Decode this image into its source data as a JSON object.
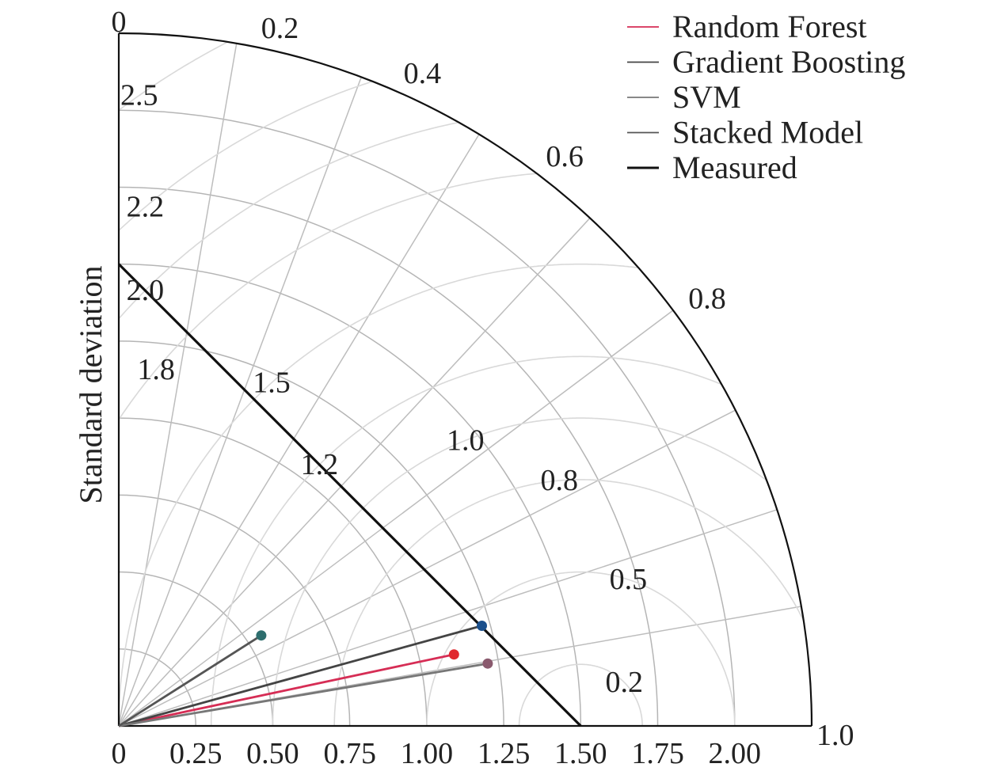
{
  "chart_data": {
    "type": "taylor",
    "ylabel": "Standard deviation",
    "std_max": 2.25,
    "std_ticks": [
      "0",
      "0.25",
      "0.50",
      "0.75",
      "1.00",
      "1.25",
      "1.50",
      "1.75",
      "2.00"
    ],
    "std_tick_values": [
      0,
      0.25,
      0.5,
      0.75,
      1.0,
      1.25,
      1.5,
      1.75,
      2.0
    ],
    "std_arc_values": [
      0.25,
      0.5,
      0.75,
      1.0,
      1.25,
      1.5,
      1.75,
      2.0
    ],
    "corr_ticks": [
      "0",
      "0.2",
      "0.4",
      "0.6",
      "0.8",
      "1.0"
    ],
    "corr_tick_values": [
      0,
      0.2,
      0.4,
      0.6,
      0.8,
      1.0
    ],
    "corr_label_correlations": [
      0.0,
      0.2,
      0.4,
      0.6,
      0.8,
      1.0
    ],
    "corr_grid_lines": [
      0.17,
      0.35,
      0.52,
      0.68,
      0.8,
      0.89,
      0.95,
      0.985
    ],
    "rms_arcs": [
      {
        "label": "0.2",
        "value": 0.2
      },
      {
        "label": "0.5",
        "value": 0.5
      },
      {
        "label": "0.8",
        "value": 0.8
      },
      {
        "label": "1.0",
        "value": 1.0
      },
      {
        "label": "1.2",
        "value": 1.2
      },
      {
        "label": "1.5",
        "value": 1.5
      },
      {
        "label": "1.8",
        "value": 1.8
      },
      {
        "label": "2.0",
        "value": 2.0
      },
      {
        "label": "2.2",
        "value": 2.2
      },
      {
        "label": "2.5",
        "value": 2.5
      }
    ],
    "reference": {
      "name": "Measured",
      "std": 1.5,
      "color": "#111111"
    },
    "series": [
      {
        "name": "Random Forest",
        "std": 1.113,
        "corr": 0.978,
        "color": "#d62d55",
        "marker": "#e0282e"
      },
      {
        "name": "Gradient Boosting",
        "std": 1.223,
        "corr": 0.964,
        "color": "#444444",
        "marker": "#1a4f8c"
      },
      {
        "name": "SVM",
        "std": 1.215,
        "corr": 0.986,
        "color": "#777777",
        "marker": "#8a5a6e"
      },
      {
        "name": "Stacked Model",
        "std": 0.548,
        "corr": 0.844,
        "color": "#555555",
        "marker": "#2e6e6e"
      }
    ],
    "legend_position": "top-right"
  }
}
